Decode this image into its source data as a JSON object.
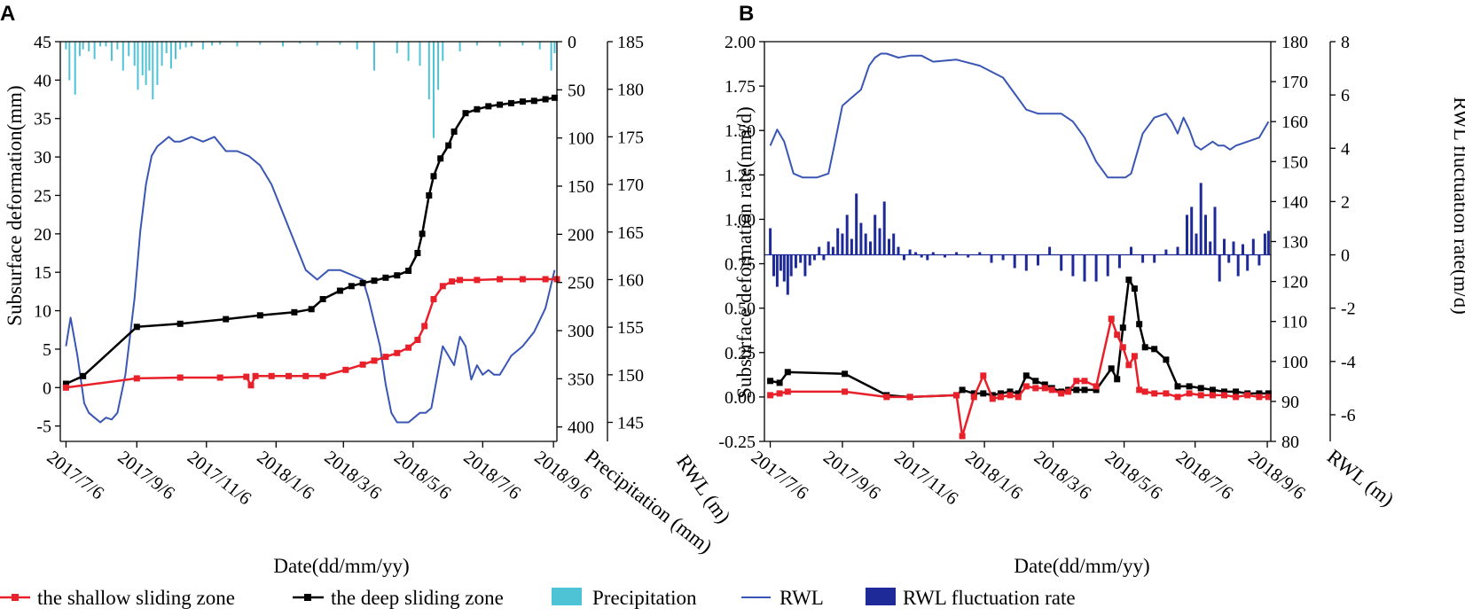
{
  "colors": {
    "shallow": "#e8202a",
    "deep": "#000000",
    "precip": "#4fc3d6",
    "rwl": "#3a56b4",
    "rwlrate": "#1f2a99"
  },
  "x_ticks": [
    "2017/7/6",
    "2017/9/6",
    "2017/11/6",
    "2018/1/6",
    "2018/3/6",
    "2018/5/6",
    "2018/7/6",
    "2018/9/6"
  ],
  "legend": {
    "shallow": "the shallow sliding zone",
    "deep": "the deep sliding zone",
    "precip": "Precipitation",
    "rwl": "RWL",
    "rwlrate": "RWL fluctuation rate"
  },
  "chart_data": [
    {
      "panel": "A",
      "type": "line",
      "xlabel": "Date(dd/mm/yy)",
      "ylabel": "Subsurface deformation(mm)",
      "y2label": "Precipitation (mm)",
      "y3label": "RWL (m)",
      "x_unit": "days since 2017/7/6",
      "xlim": [
        -5,
        430
      ],
      "ylim": [
        -7,
        45
      ],
      "y_ticks": [
        -5,
        0,
        5,
        10,
        15,
        20,
        25,
        30,
        35,
        40,
        45
      ],
      "y2lim": [
        0,
        415
      ],
      "y2_inverted": true,
      "y2_ticks": [
        0,
        50,
        100,
        150,
        200,
        250,
        300,
        350,
        400
      ],
      "y3lim": [
        143,
        185
      ],
      "y3_ticks": [
        145,
        150,
        155,
        160,
        165,
        170,
        175,
        180,
        185
      ],
      "series": [
        {
          "name": "the shallow sliding zone",
          "axis": "y",
          "x": [
            0,
            62,
            100,
            135,
            158,
            162,
            166,
            180,
            195,
            210,
            225,
            245,
            260,
            270,
            280,
            290,
            300,
            308,
            314,
            322,
            330,
            338,
            345,
            360,
            380,
            400,
            420,
            430
          ],
          "y": [
            0,
            1.2,
            1.3,
            1.3,
            1.4,
            0.3,
            1.5,
            1.5,
            1.5,
            1.5,
            1.5,
            2.3,
            3.0,
            3.5,
            4.0,
            4.5,
            5.2,
            6.2,
            8.0,
            11.5,
            13.2,
            13.8,
            14.0,
            14.0,
            14.1,
            14.1,
            14.1,
            14.1
          ]
        },
        {
          "name": "the deep sliding zone",
          "axis": "y",
          "x": [
            0,
            15,
            62,
            100,
            140,
            170,
            200,
            215,
            225,
            240,
            250,
            260,
            270,
            280,
            290,
            300,
            308,
            312,
            318,
            322,
            328,
            335,
            340,
            350,
            360,
            370,
            380,
            390,
            400,
            410,
            420,
            428
          ],
          "y": [
            0.5,
            1.5,
            7.9,
            8.3,
            8.9,
            9.4,
            9.8,
            10.2,
            11.5,
            12.6,
            13.2,
            13.6,
            13.9,
            14.3,
            14.6,
            15.2,
            17.5,
            20.0,
            25.0,
            27.5,
            29.8,
            31.5,
            33.3,
            35.7,
            36.2,
            36.6,
            36.8,
            37.0,
            37.2,
            37.3,
            37.5,
            37.7
          ]
        },
        {
          "name": "RWL",
          "axis": "y3",
          "x": [
            0,
            4,
            10,
            16,
            20,
            25,
            30,
            35,
            40,
            45,
            52,
            60,
            65,
            70,
            75,
            80,
            85,
            90,
            95,
            100,
            110,
            120,
            130,
            140,
            150,
            160,
            170,
            180,
            190,
            200,
            210,
            220,
            230,
            240,
            250,
            260,
            265,
            275,
            280,
            285,
            290,
            295,
            300,
            305,
            310,
            315,
            320,
            330,
            340,
            345,
            350,
            355,
            360,
            365,
            370,
            375,
            380,
            385,
            390,
            395,
            400,
            410,
            420,
            428
          ],
          "y": [
            153,
            156,
            152,
            147,
            146,
            145.5,
            145,
            145.5,
            145.3,
            146,
            150,
            158,
            165,
            170,
            173,
            174,
            174.5,
            175,
            174.5,
            174.5,
            175,
            174.5,
            175,
            173.5,
            173.5,
            173,
            172,
            170,
            167,
            164,
            161,
            160,
            161,
            161,
            160.5,
            160,
            158,
            153,
            149,
            146,
            145,
            145,
            145,
            145.5,
            146,
            146,
            146.5,
            153,
            151,
            154,
            153,
            149.5,
            151,
            150,
            150.5,
            150,
            150,
            151,
            152,
            152.5,
            153,
            154.5,
            157,
            161
          ]
        },
        {
          "name": "Precipitation",
          "axis": "y2",
          "type": "bar",
          "x": [
            0,
            3,
            8,
            12,
            15,
            20,
            25,
            30,
            35,
            40,
            45,
            50,
            55,
            60,
            63,
            67,
            70,
            73,
            76,
            80,
            84,
            88,
            92,
            96,
            100,
            105,
            110,
            120,
            128,
            135,
            150,
            170,
            190,
            205,
            220,
            240,
            255,
            270,
            290,
            300,
            310,
            318,
            322,
            326,
            330,
            345,
            360,
            380,
            400,
            415,
            425,
            428
          ],
          "values": [
            8,
            40,
            55,
            15,
            8,
            10,
            18,
            5,
            5,
            20,
            8,
            30,
            15,
            25,
            50,
            35,
            45,
            30,
            60,
            45,
            25,
            12,
            28,
            18,
            8,
            6,
            5,
            8,
            4,
            3,
            5,
            3,
            5,
            2,
            4,
            3,
            8,
            30,
            12,
            20,
            25,
            60,
            100,
            50,
            20,
            10,
            4,
            5,
            4,
            8,
            30,
            12
          ]
        }
      ]
    },
    {
      "panel": "B",
      "type": "line",
      "xlabel": "Date(dd/mm/yy)",
      "ylabel": "Subsurface deformation rate(mm/d)",
      "y2label": "RWL (m)",
      "y3label": "RWL fluctuation rate(m/d)",
      "x_unit": "days since 2017/7/6",
      "xlim": [
        -5,
        430
      ],
      "ylim": [
        -0.25,
        2.0
      ],
      "y_ticks": [
        -0.25,
        0.0,
        0.25,
        0.5,
        0.75,
        1.0,
        1.25,
        1.5,
        1.75,
        2.0
      ],
      "y2lim": [
        80,
        180
      ],
      "y2_ticks": [
        80,
        90,
        100,
        110,
        120,
        130,
        140,
        150,
        160,
        170,
        180
      ],
      "y3lim": [
        -7,
        8
      ],
      "y3_ticks": [
        -6,
        -4,
        -2,
        0,
        2,
        4,
        6,
        8
      ],
      "series": [
        {
          "name": "the shallow sliding zone",
          "axis": "y",
          "x": [
            0,
            8,
            15,
            64,
            100,
            120,
            160,
            165,
            175,
            183,
            191,
            198,
            206,
            213,
            220,
            228,
            236,
            242,
            250,
            256,
            263,
            270,
            280,
            293,
            298,
            303,
            308,
            313,
            317,
            322,
            330,
            340,
            350,
            360,
            370,
            380,
            390,
            400,
            410,
            420,
            428
          ],
          "y": [
            0.01,
            0.02,
            0.03,
            0.03,
            0.0,
            0.0,
            0.01,
            -0.22,
            0.0,
            0.12,
            -0.01,
            0.0,
            0.01,
            0.0,
            0.06,
            0.05,
            0.05,
            0.04,
            0.02,
            0.03,
            0.09,
            0.09,
            0.06,
            0.44,
            0.35,
            0.28,
            0.18,
            0.23,
            0.04,
            0.03,
            0.02,
            0.02,
            0.0,
            0.02,
            0.01,
            0.01,
            0.01,
            0.0,
            0.01,
            0.0,
            0.0
          ]
        },
        {
          "name": "the deep sliding zone",
          "axis": "y",
          "x": [
            0,
            8,
            15,
            64,
            100,
            120,
            160,
            165,
            175,
            183,
            191,
            198,
            206,
            213,
            220,
            228,
            236,
            242,
            250,
            256,
            263,
            270,
            280,
            293,
            298,
            303,
            308,
            313,
            317,
            322,
            330,
            340,
            350,
            360,
            370,
            380,
            390,
            400,
            410,
            420,
            428
          ],
          "y": [
            0.09,
            0.08,
            0.14,
            0.13,
            0.01,
            0.0,
            0.01,
            0.04,
            0.02,
            0.02,
            0.01,
            0.02,
            0.03,
            0.02,
            0.12,
            0.09,
            0.07,
            0.05,
            0.03,
            0.04,
            0.04,
            0.04,
            0.04,
            0.16,
            0.1,
            0.39,
            0.66,
            0.61,
            0.41,
            0.28,
            0.27,
            0.21,
            0.06,
            0.06,
            0.05,
            0.04,
            0.03,
            0.03,
            0.02,
            0.02,
            0.02
          ]
        },
        {
          "name": "RWL",
          "axis": "y2",
          "x": [
            0,
            6,
            12,
            20,
            28,
            40,
            50,
            55,
            62,
            70,
            78,
            85,
            90,
            95,
            100,
            110,
            120,
            130,
            140,
            160,
            180,
            200,
            210,
            220,
            230,
            240,
            250,
            260,
            270,
            280,
            290,
            295,
            300,
            305,
            310,
            315,
            320,
            330,
            340,
            345,
            350,
            355,
            360,
            365,
            370,
            375,
            380,
            385,
            390,
            395,
            400,
            410,
            420,
            428
          ],
          "y": [
            154,
            158,
            155,
            147,
            146,
            146,
            147,
            154,
            164,
            166,
            168,
            174,
            176,
            177,
            177,
            176,
            176.5,
            176.5,
            175,
            175.5,
            174,
            171,
            167,
            163,
            162,
            162,
            162,
            160,
            156,
            150,
            146,
            146,
            146,
            146,
            147,
            152,
            157,
            161,
            162,
            160,
            157,
            161,
            158,
            154,
            153,
            154,
            155,
            154,
            154,
            153,
            154,
            155,
            156,
            160
          ]
        },
        {
          "name": "RWL fluctuation rate",
          "axis": "y3",
          "type": "bar",
          "x": [
            0,
            3,
            6,
            9,
            12,
            15,
            18,
            22,
            26,
            30,
            34,
            38,
            42,
            46,
            50,
            54,
            58,
            62,
            66,
            70,
            74,
            78,
            82,
            86,
            90,
            94,
            98,
            102,
            106,
            110,
            115,
            120,
            125,
            130,
            135,
            140,
            150,
            160,
            170,
            180,
            190,
            200,
            210,
            220,
            230,
            240,
            250,
            260,
            270,
            280,
            290,
            300,
            310,
            320,
            330,
            340,
            350,
            358,
            362,
            366,
            370,
            374,
            378,
            382,
            386,
            390,
            394,
            398,
            402,
            406,
            410,
            415,
            420,
            425,
            428
          ],
          "values": [
            1.0,
            -0.8,
            -1.2,
            -0.6,
            -1.0,
            -1.5,
            -0.8,
            -0.5,
            -0.3,
            -0.8,
            -0.4,
            -0.2,
            0.3,
            -0.2,
            0.5,
            0.3,
            1.0,
            0.8,
            1.5,
            0.6,
            2.3,
            1.2,
            0.8,
            0.5,
            1.5,
            1.0,
            2.0,
            0.6,
            0.8,
            0.3,
            -0.2,
            0.2,
            0.1,
            -0.1,
            -0.2,
            0.1,
            -0.1,
            0.1,
            -0.1,
            0.1,
            -0.3,
            -0.2,
            -0.5,
            -0.6,
            -0.4,
            0.3,
            -0.6,
            -0.8,
            -1.0,
            -1.0,
            -0.8,
            -0.5,
            0.3,
            -0.3,
            -0.3,
            0.2,
            0.3,
            1.5,
            1.8,
            0.8,
            2.7,
            1.5,
            0.5,
            1.8,
            -1.0,
            0.6,
            -0.3,
            0.5,
            -0.8,
            0.4,
            -0.6,
            0.6,
            -0.4,
            0.8,
            0.9
          ]
        }
      ]
    }
  ],
  "panels": [
    {
      "letter": "A",
      "xlabel": "Date(dd/mm/yy)",
      "ylabel": "Subsurface deformation(mm)",
      "y2label": "Precipitation (mm)",
      "y3label": "RWL (m)"
    },
    {
      "letter": "B",
      "xlabel": "Date(dd/mm/yy)",
      "ylabel": "Subsurface deformation rate(mm/d)",
      "y2label": "RWL (m)",
      "y3label": "RWL fluctuation rate(m/d)"
    }
  ]
}
